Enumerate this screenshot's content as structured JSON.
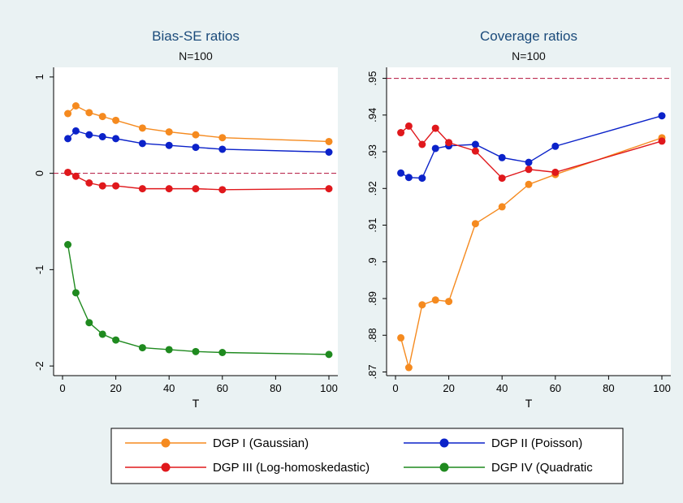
{
  "chart_data": [
    {
      "type": "line",
      "title": "Bias-SE ratios",
      "subtitle": "N=100",
      "xlabel": "T",
      "ylabel": "",
      "xlim": [
        0,
        100
      ],
      "ylim": [
        -2.1,
        1.1
      ],
      "xticks": [
        0,
        20,
        40,
        60,
        80,
        100
      ],
      "yticks": [
        -2,
        -1,
        0,
        1
      ],
      "ytick_labels": [
        "-2",
        "-1",
        "0",
        "1"
      ],
      "reference_line": 0,
      "x": [
        2,
        5,
        10,
        15,
        20,
        30,
        40,
        50,
        60,
        100
      ],
      "series": [
        {
          "name": "DGP I (Gaussian)",
          "color": "#f58a1f",
          "values": [
            0.62,
            0.7,
            0.63,
            0.59,
            0.55,
            0.47,
            0.43,
            0.4,
            0.37,
            0.33
          ]
        },
        {
          "name": "DGP II (Poisson)",
          "color": "#0b22c9",
          "values": [
            0.36,
            0.44,
            0.4,
            0.38,
            0.36,
            0.31,
            0.29,
            0.27,
            0.25,
            0.22
          ]
        },
        {
          "name": "DGP III (Log-homoskedastic)",
          "color": "#e0181c",
          "values": [
            0.01,
            -0.03,
            -0.1,
            -0.13,
            -0.13,
            -0.16,
            -0.16,
            -0.16,
            -0.17,
            -0.16
          ]
        },
        {
          "name": "DGP IV (Quadratic",
          "color": "#1f8a1f",
          "values": [
            -0.74,
            -1.24,
            -1.55,
            -1.67,
            -1.73,
            -1.81,
            -1.83,
            -1.85,
            -1.86,
            -1.88
          ]
        }
      ]
    },
    {
      "type": "line",
      "title": "Coverage ratios",
      "subtitle": "N=100",
      "xlabel": "T",
      "ylabel": "",
      "xlim": [
        0,
        100
      ],
      "ylim": [
        0.869,
        0.953
      ],
      "xticks": [
        0,
        20,
        40,
        60,
        80,
        100
      ],
      "yticks": [
        0.87,
        0.88,
        0.89,
        0.9,
        0.91,
        0.92,
        0.93,
        0.94,
        0.95
      ],
      "ytick_labels": [
        ".87",
        ".88",
        ".89",
        ".9",
        ".91",
        ".92",
        ".93",
        ".94",
        ".95"
      ],
      "reference_line": 0.95,
      "series": [
        {
          "name": "DGP I (Gaussian)",
          "color": "#f58a1f",
          "x": [
            2,
            5,
            10,
            15,
            20,
            30,
            40,
            50,
            60,
            100
          ],
          "values": [
            0.8793,
            0.8712,
            0.8883,
            0.8896,
            0.8892,
            0.9104,
            0.915,
            0.9211,
            0.9238,
            0.9338
          ]
        },
        {
          "name": "DGP II (Poisson)",
          "color": "#0b22c9",
          "x": [
            2,
            5,
            10,
            15,
            20,
            30,
            40,
            50,
            60,
            100
          ],
          "values": [
            0.9242,
            0.923,
            0.9228,
            0.9309,
            0.9316,
            0.932,
            0.9284,
            0.9271,
            0.9315,
            0.9398
          ]
        },
        {
          "name": "DGP III (Log-homoskedastic)",
          "color": "#e0181c",
          "x": [
            2,
            5,
            10,
            15,
            20,
            30,
            40,
            50,
            60,
            100
          ],
          "values": [
            0.9352,
            0.937,
            0.932,
            0.9364,
            0.9325,
            0.9302,
            0.9228,
            0.9252,
            0.9244,
            0.9329
          ]
        },
        {
          "name": "DGP IV (Quadratic",
          "color": "#1f8a1f",
          "x": [],
          "values": []
        }
      ]
    }
  ],
  "legend": {
    "placement": "bottom",
    "items": [
      {
        "label": "DGP I (Gaussian)",
        "color": "#f58a1f"
      },
      {
        "label": "DGP II (Poisson)",
        "color": "#0b22c9"
      },
      {
        "label": "DGP III (Log-homoskedastic)",
        "color": "#e0181c"
      },
      {
        "label": "DGP IV (Quadratic",
        "color": "#1f8a1f"
      }
    ]
  },
  "reference_line_color": "#b3113b"
}
